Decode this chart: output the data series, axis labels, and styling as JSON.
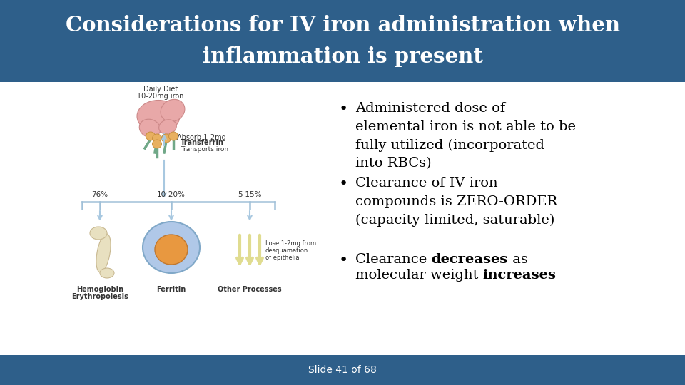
{
  "title_line1": "Considerations for IV iron administration when",
  "title_line2": "inflammation is present",
  "title_bg_color": "#2E5F8A",
  "title_text_color": "#FFFFFF",
  "body_bg_color": "#FFFFFF",
  "footer_bg_color": "#2E5F8A",
  "footer_text": "Slide 41 of 68",
  "footer_text_color": "#FFFFFF",
  "title_fontsize": 21,
  "bullet_fontsize": 14,
  "footer_fontsize": 10,
  "title_bar_height": 115,
  "footer_bar_height": 42,
  "bullet1": "Administered dose of\nelemental iron is not able to be\nfully utilized (incorporated\ninto RBCs)",
  "bullet2": "Clearance of IV iron\ncompounds is ZERO-ORDER\n(capacity-limited, saturable)",
  "bullet3_pre": "Clearance ",
  "bullet3_bold1": "decreases",
  "bullet3_mid": " as",
  "bullet3_line2_pre": "molecular weight ",
  "bullet3_bold2": "increases",
  "arrow_color": "#A8C8E0",
  "diag_text_color": "#333333",
  "intestine_color": "#E8A8A8",
  "intestine_edge": "#CC8888",
  "transferrin_stem_color": "#70A888",
  "transferrin_head_color": "#E8B060",
  "transferrin_head_edge": "#C89040",
  "bone_color": "#E8E0C0",
  "bone_edge": "#C8B890",
  "cell_outer_color": "#B0C8E8",
  "cell_outer_edge": "#80A8C8",
  "cell_inner_color": "#E89840",
  "cell_inner_edge": "#C07830",
  "yellow_arrow_color": "#E0DC90",
  "hline_color": "#A0C0D8"
}
